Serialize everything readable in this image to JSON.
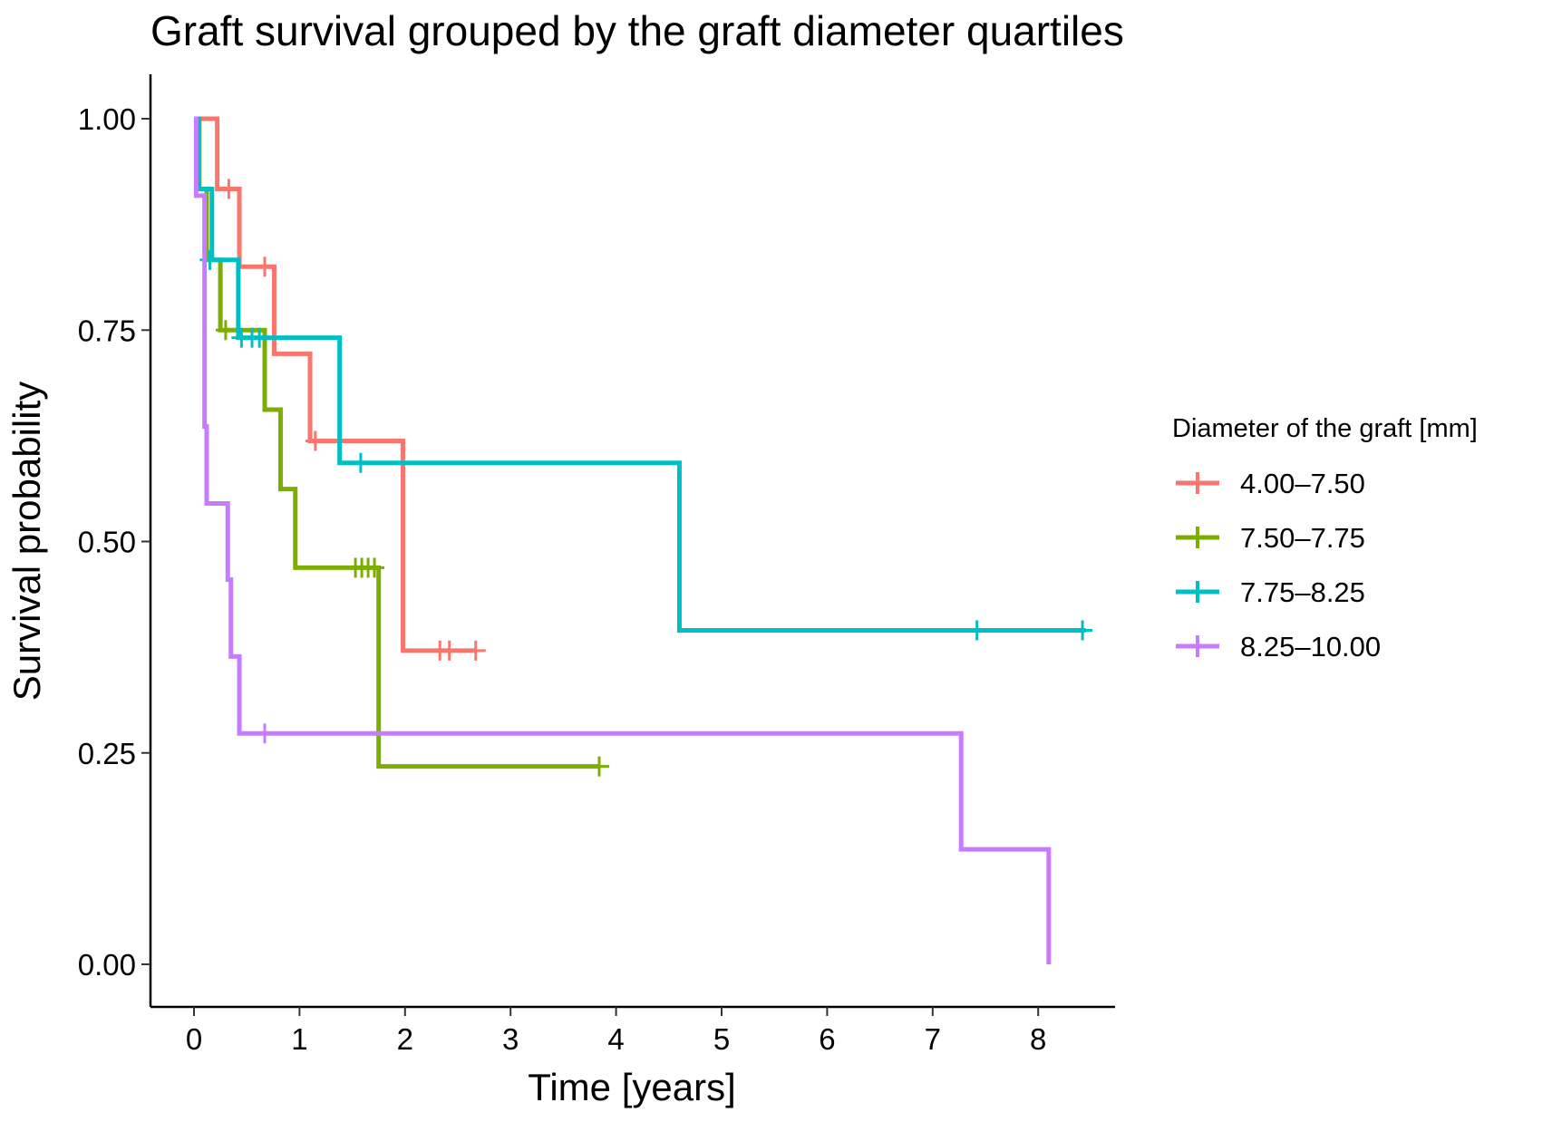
{
  "chart_data": {
    "type": "line",
    "subtype": "kaplan-meier step",
    "title": "Graft survival grouped by the graft diameter quartiles",
    "xlabel": "Time [years]",
    "ylabel": "Survival probability",
    "xlim": [
      -0.4,
      8.8
    ],
    "ylim": [
      -0.05,
      1.05
    ],
    "xticks": [
      0,
      1,
      2,
      3,
      4,
      5,
      6,
      7,
      8
    ],
    "yticks": [
      0.0,
      0.25,
      0.5,
      0.75,
      1.0
    ],
    "xtick_labels": [
      "0",
      "1",
      "2",
      "3",
      "4",
      "5",
      "6",
      "7",
      "8"
    ],
    "ytick_labels": [
      "0.00",
      "0.25",
      "0.50",
      "0.75",
      "1.00"
    ],
    "grid": false,
    "legend_position": "right",
    "legend_title": "Diameter of the graft [mm]",
    "series": [
      {
        "name": "4.00–7.50",
        "color": "#F8766D",
        "steps": [
          [
            0,
            1.0
          ],
          [
            0.22,
            0.917
          ],
          [
            0.43,
            0.825
          ],
          [
            0.76,
            0.722
          ],
          [
            1.1,
            0.619
          ],
          [
            1.98,
            0.371
          ],
          [
            2.67,
            0.371
          ]
        ],
        "censor": [
          [
            0.33,
            0.917
          ],
          [
            0.67,
            0.825
          ],
          [
            1.15,
            0.619
          ],
          [
            2.33,
            0.371
          ],
          [
            2.42,
            0.371
          ],
          [
            2.67,
            0.371
          ]
        ]
      },
      {
        "name": "7.50–7.75",
        "color": "#7CAE00",
        "steps": [
          [
            0,
            1.0
          ],
          [
            0.05,
            0.917
          ],
          [
            0.12,
            0.833
          ],
          [
            0.25,
            0.75
          ],
          [
            0.67,
            0.656
          ],
          [
            0.82,
            0.562
          ],
          [
            0.96,
            0.469
          ],
          [
            1.75,
            0.234
          ],
          [
            3.84,
            0.234
          ]
        ],
        "censor": [
          [
            0.3,
            0.75
          ],
          [
            1.53,
            0.469
          ],
          [
            1.59,
            0.469
          ],
          [
            1.65,
            0.469
          ],
          [
            1.71,
            0.469
          ],
          [
            3.84,
            0.234
          ]
        ]
      },
      {
        "name": "7.75–8.25",
        "color": "#00BFC4",
        "steps": [
          [
            0,
            1.0
          ],
          [
            0.04,
            0.917
          ],
          [
            0.17,
            0.833
          ],
          [
            0.42,
            0.741
          ],
          [
            1.38,
            0.593
          ],
          [
            4.6,
            0.395
          ],
          [
            8.45,
            0.395
          ]
        ],
        "censor": [
          [
            0.15,
            0.833
          ],
          [
            0.45,
            0.741
          ],
          [
            0.55,
            0.741
          ],
          [
            0.62,
            0.741
          ],
          [
            1.58,
            0.593
          ],
          [
            7.42,
            0.395
          ],
          [
            8.42,
            0.395
          ]
        ]
      },
      {
        "name": "8.25–10.00",
        "color": "#C77CFF",
        "steps": [
          [
            0,
            1.0
          ],
          [
            0.02,
            0.909
          ],
          [
            0.1,
            0.636
          ],
          [
            0.12,
            0.545
          ],
          [
            0.32,
            0.455
          ],
          [
            0.35,
            0.364
          ],
          [
            0.43,
            0.273
          ],
          [
            7.27,
            0.136
          ],
          [
            8.1,
            0.0
          ]
        ],
        "censor": [
          [
            0.67,
            0.273
          ]
        ]
      }
    ]
  }
}
